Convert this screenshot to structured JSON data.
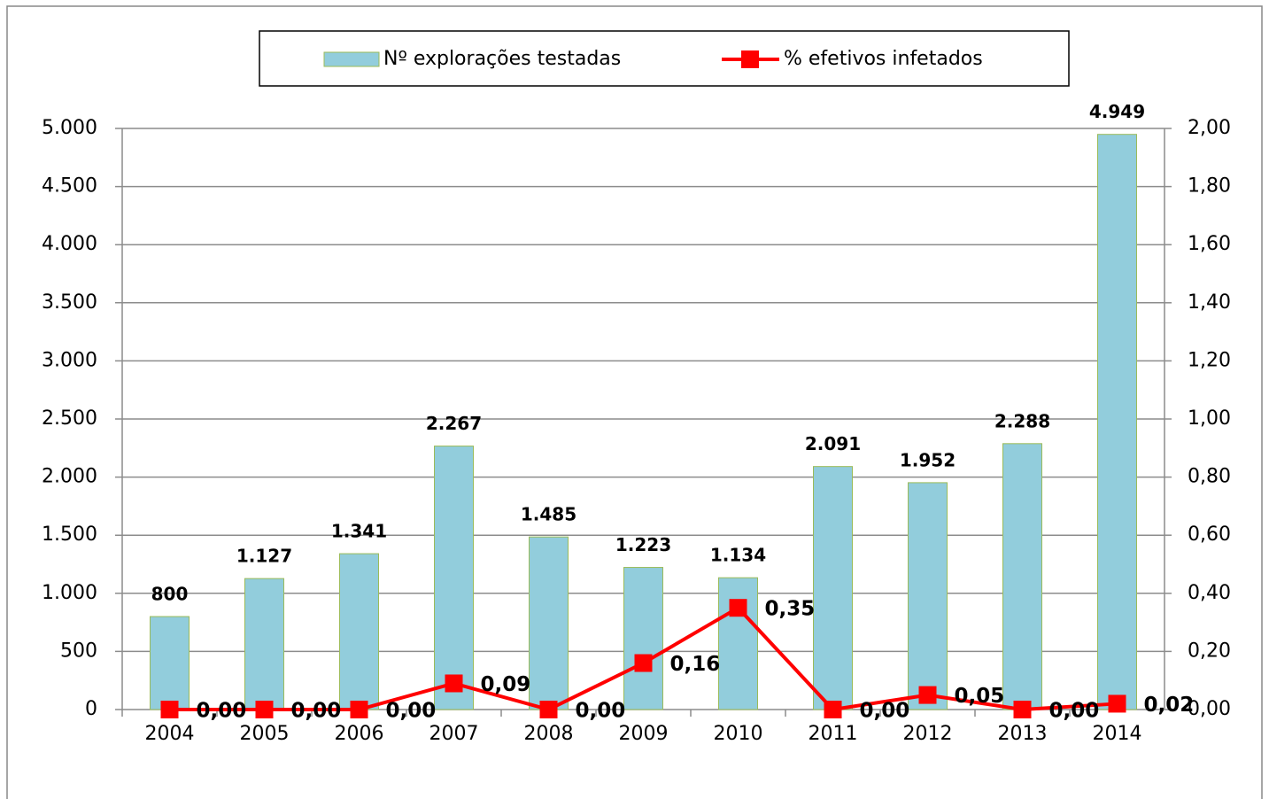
{
  "chart_data": {
    "type": "combo",
    "categories": [
      "2004",
      "2005",
      "2006",
      "2007",
      "2008",
      "2009",
      "2010",
      "2011",
      "2012",
      "2013",
      "2014"
    ],
    "series": [
      {
        "name": "Nº explorações testadas",
        "type": "bar",
        "color": "#92cddc",
        "edge_color": "#9bbb59",
        "values": [
          800,
          1127,
          1341,
          2267,
          1485,
          1223,
          1134,
          2091,
          1952,
          2288,
          4949
        ],
        "value_labels": [
          "800",
          "1.127",
          "1.341",
          "2.267",
          "1.485",
          "1.223",
          "1.134",
          "2.091",
          "1.952",
          "2.288",
          "4.949"
        ]
      },
      {
        "name": "% efetivos infetados",
        "type": "line",
        "axis": "y2",
        "color": "#ff0000",
        "values": [
          0,
          0,
          0,
          0.09,
          0,
          0.16,
          0.35,
          0,
          0.05,
          0,
          0.02
        ],
        "value_labels": [
          "0,00",
          "0,00",
          "0,00",
          "0,09",
          "0,00",
          "0,16",
          "0,35",
          "0,00",
          "0,05",
          "0,00",
          "0,02"
        ]
      }
    ],
    "ylim": [
      0,
      5000
    ],
    "yticks": [
      0,
      500,
      {
        "value": 1000,
        "label": "1.000"
      },
      {
        "value": 1500,
        "label": "1.500"
      },
      {
        "value": 2000,
        "label": "2.000"
      },
      {
        "value": 2500,
        "label": "2.500"
      },
      {
        "value": 3000,
        "label": "3.000"
      },
      {
        "value": 3500,
        "label": "3.500"
      },
      {
        "value": 4000,
        "label": "4.000"
      },
      {
        "value": 4500,
        "label": "4.500"
      },
      {
        "value": 5000,
        "label": "5.000"
      }
    ],
    "y2lim": [
      0,
      2
    ],
    "y2ticks": [
      {
        "value": 0,
        "label": "0,00"
      },
      {
        "value": 0.2,
        "label": "0,20"
      },
      {
        "value": 0.4,
        "label": "0,40"
      },
      {
        "value": 0.6,
        "label": "0,60"
      },
      {
        "value": 0.8,
        "label": "0,80"
      },
      {
        "value": 1,
        "label": "1,00"
      },
      {
        "value": 1.2,
        "label": "1,20"
      },
      {
        "value": 1.4,
        "label": "1,40"
      },
      {
        "value": 1.6,
        "label": "1,60"
      },
      {
        "value": 1.8,
        "label": "1,80"
      },
      {
        "value": 2,
        "label": "2,00"
      }
    ],
    "grid": true,
    "legend": "top"
  }
}
